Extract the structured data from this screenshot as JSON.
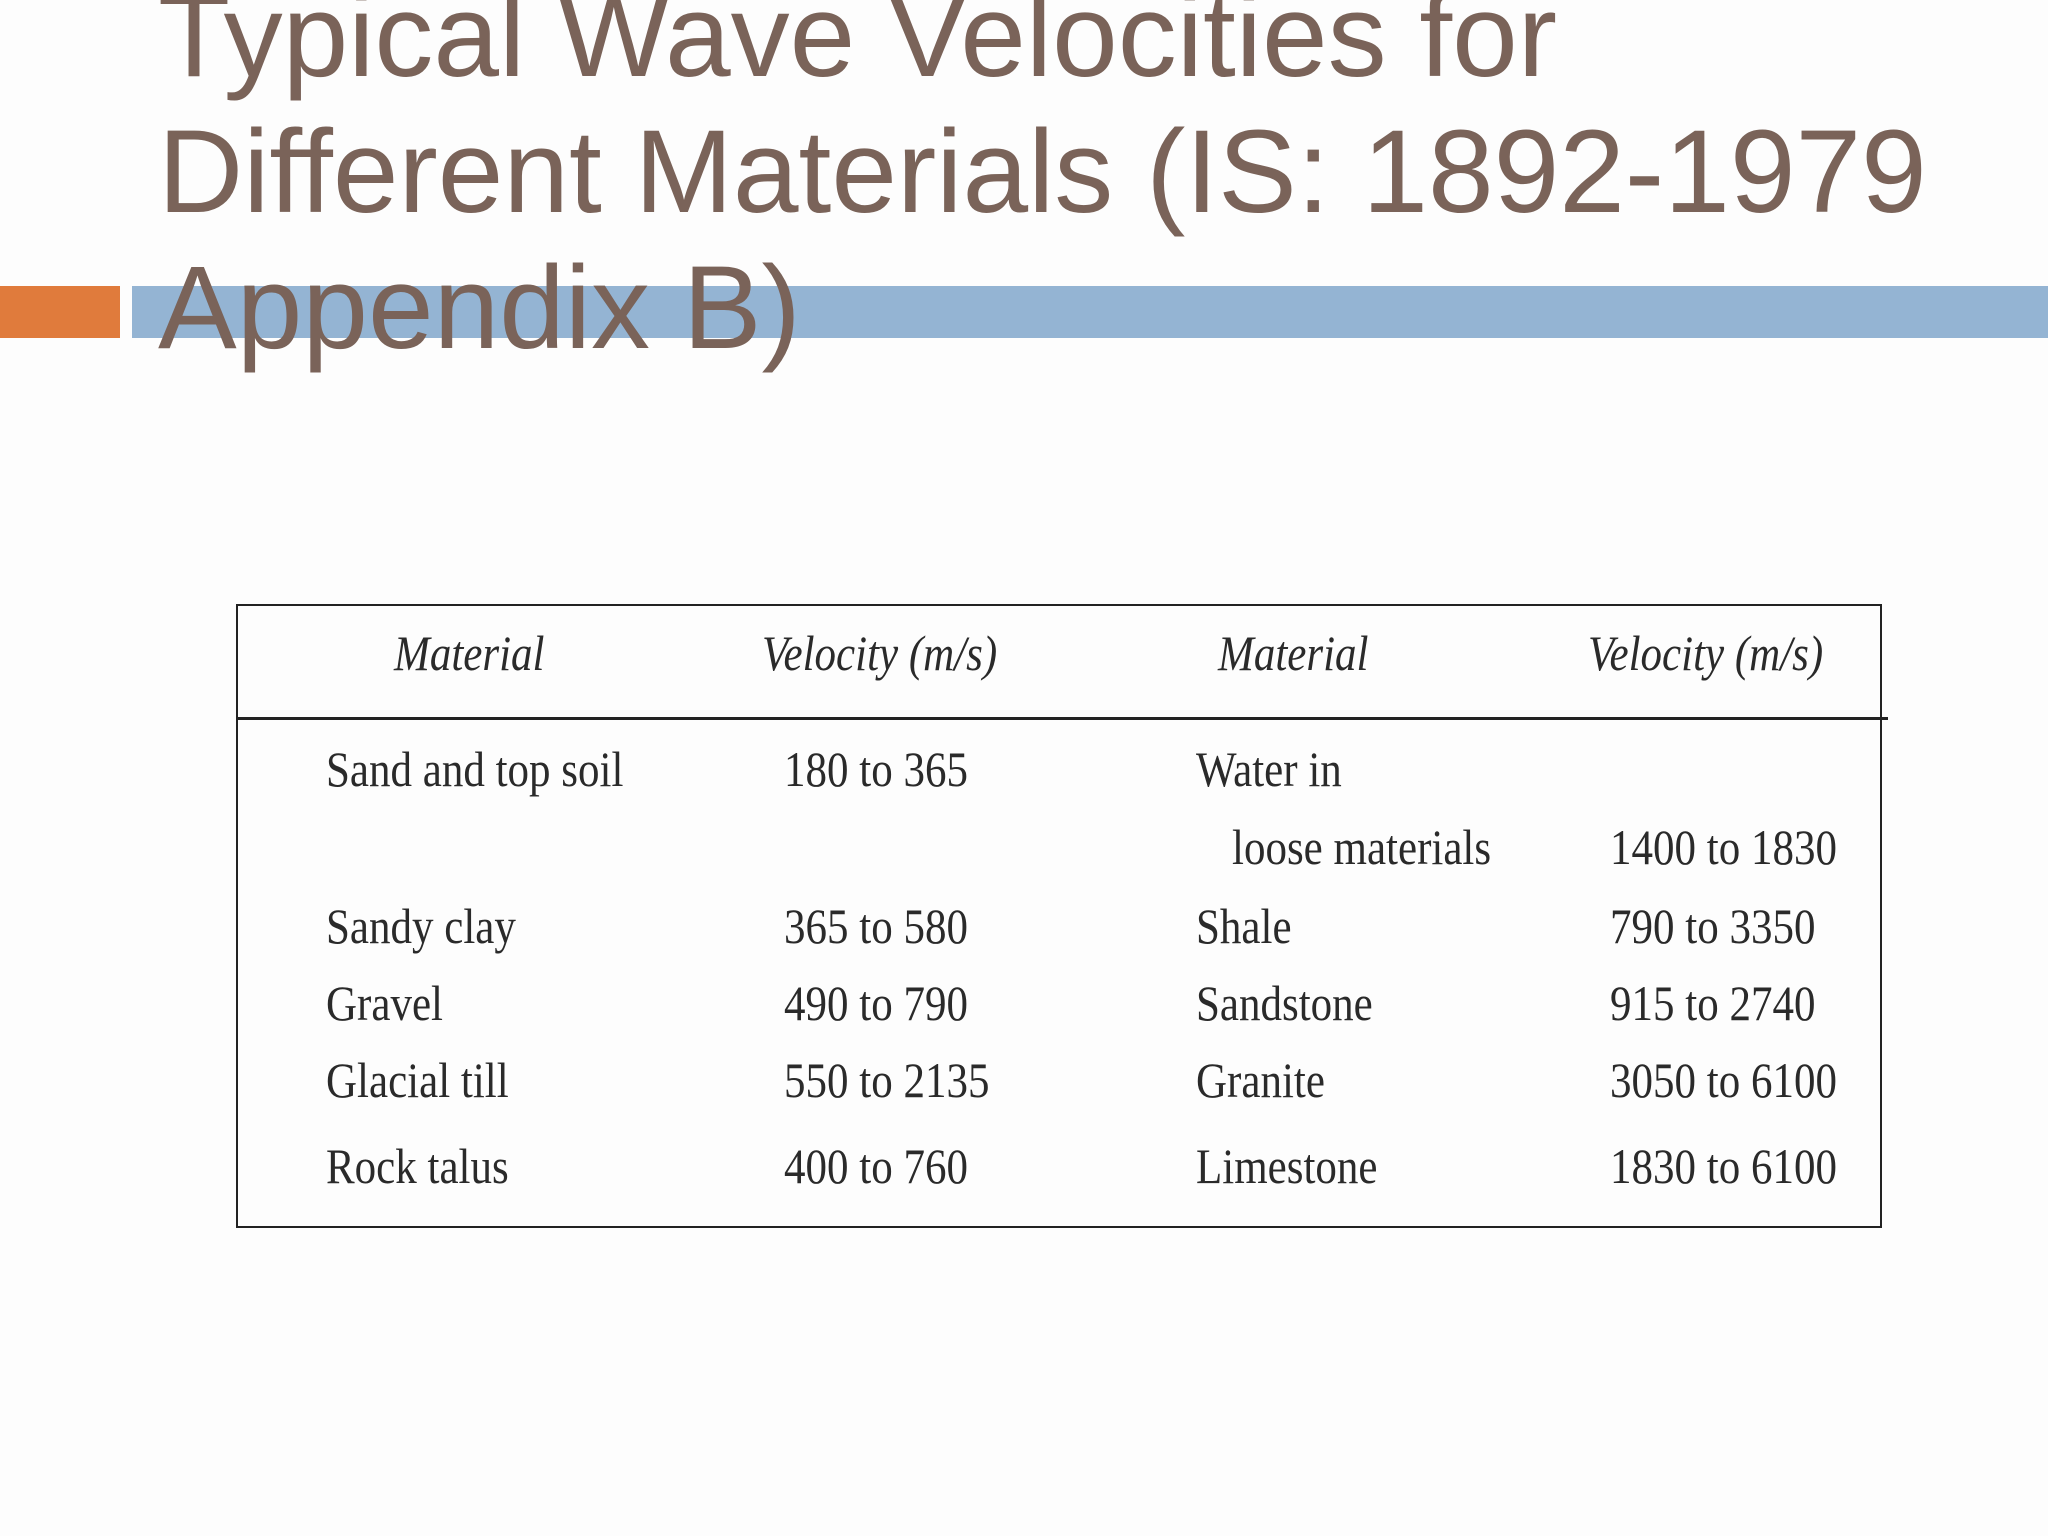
{
  "slide": {
    "title_lines": [
      "Typical Wave Velocities for",
      "Different Materials (IS: 1892-1979",
      "Appendix B)"
    ]
  },
  "table": {
    "headers": [
      "Material",
      "Velocity (m/s)",
      "Material",
      "Velocity (m/s)"
    ],
    "rows": [
      {
        "material_1": "Sand and top soil",
        "velocity_1": "180 to 365",
        "material_2": "Water in",
        "velocity_2": ""
      },
      {
        "material_1": "",
        "velocity_1": "",
        "material_2": "loose materials",
        "velocity_2": "1400 to 1830"
      },
      {
        "material_1": "Sandy clay",
        "velocity_1": "365 to 580",
        "material_2": "Shale",
        "velocity_2": "790 to 3350"
      },
      {
        "material_1": "Gravel",
        "velocity_1": "490 to 790",
        "material_2": "Sandstone",
        "velocity_2": "915 to 2740"
      },
      {
        "material_1": "Glacial till",
        "velocity_1": "550 to 2135",
        "material_2": "Granite",
        "velocity_2": "3050 to 6100"
      },
      {
        "material_1": "Rock talus",
        "velocity_1": "400 to 760",
        "material_2": "Limestone",
        "velocity_2": "1830 to 6100"
      }
    ]
  },
  "colors": {
    "title": "#7a6359",
    "accent_orange": "#e07b3c",
    "accent_blue": "#94b4d3",
    "table_text": "#2a2a2a"
  }
}
